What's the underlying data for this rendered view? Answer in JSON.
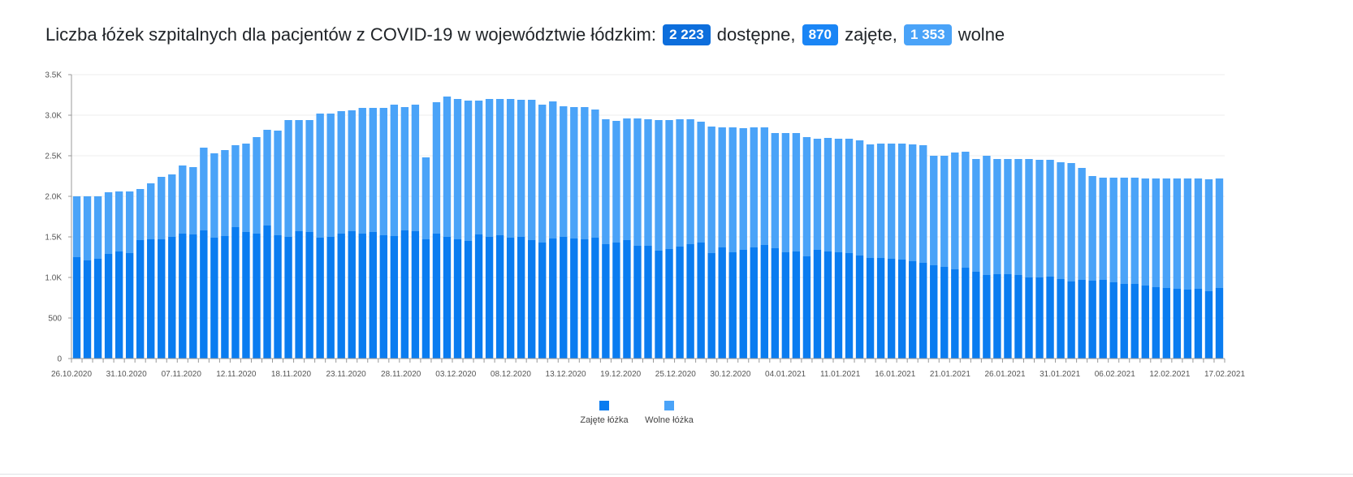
{
  "header": {
    "prefix": "Liczba łóżek szpitalnych dla pacjentów z COVID-19 w województwie łódzkim:",
    "total_value": "2 223",
    "total_label": "dostępne,",
    "occupied_value": "870",
    "occupied_label": "zajęte,",
    "free_value": "1 353",
    "free_label": "wolne"
  },
  "colors": {
    "occupied": "#0a7cf0",
    "free": "#4aa3f8",
    "badge_total": "#0d6edc",
    "badge_occupied": "#1a85f5",
    "badge_free": "#4aa3f8"
  },
  "chart_data": {
    "type": "bar",
    "stacked": true,
    "x_start": "26.10.2020",
    "x_tick_labels": [
      "26.10.2020",
      "31.10.2020",
      "07.11.2020",
      "12.11.2020",
      "18.11.2020",
      "23.11.2020",
      "28.11.2020",
      "03.12.2020",
      "08.12.2020",
      "13.12.2020",
      "19.12.2020",
      "25.12.2020",
      "30.12.2020",
      "04.01.2021",
      "11.01.2021",
      "16.01.2021",
      "21.01.2021",
      "26.01.2021",
      "31.01.2021",
      "06.02.2021",
      "12.02.2021",
      "17.02.2021"
    ],
    "y_ticks": [
      0,
      500,
      1000,
      1500,
      2000,
      2500,
      3000,
      3500
    ],
    "y_tick_labels": [
      "0",
      "500",
      "1.0K",
      "1.5K",
      "2.0K",
      "2.5K",
      "3.0K",
      "3.5K"
    ],
    "ylim": [
      0,
      3500
    ],
    "grid": true,
    "legend_position": "bottom-center",
    "series": [
      {
        "name": "Zajęte łóżka",
        "values": [
          1250,
          1210,
          1230,
          1290,
          1320,
          1300,
          1460,
          1470,
          1470,
          1500,
          1540,
          1530,
          1580,
          1490,
          1510,
          1620,
          1560,
          1540,
          1640,
          1520,
          1500,
          1570,
          1560,
          1490,
          1500,
          1540,
          1570,
          1540,
          1560,
          1520,
          1510,
          1580,
          1570,
          1470,
          1540,
          1500,
          1470,
          1450,
          1530,
          1500,
          1520,
          1490,
          1500,
          1460,
          1430,
          1480,
          1500,
          1480,
          1470,
          1490,
          1410,
          1430,
          1460,
          1390,
          1390,
          1330,
          1350,
          1380,
          1410,
          1430,
          1300,
          1370,
          1310,
          1340,
          1370,
          1400,
          1360,
          1310,
          1320,
          1260,
          1340,
          1320,
          1310,
          1300,
          1270,
          1240,
          1240,
          1230,
          1220,
          1200,
          1180,
          1150,
          1130,
          1100,
          1120,
          1070,
          1030,
          1040,
          1040,
          1030,
          1000,
          1000,
          1010,
          980,
          950,
          970,
          960,
          970,
          940,
          920,
          920,
          900,
          880,
          870,
          860,
          850,
          860,
          830,
          870
        ]
      },
      {
        "name": "Wolne łóżka",
        "values": [
          750,
          790,
          770,
          760,
          740,
          760,
          630,
          690,
          770,
          770,
          840,
          830,
          1020,
          1040,
          1060,
          1010,
          1090,
          1190,
          1180,
          1290,
          1440,
          1370,
          1380,
          1530,
          1520,
          1510,
          1490,
          1550,
          1530,
          1570,
          1620,
          1520,
          1560,
          1010,
          1620,
          1730,
          1730,
          1730,
          1650,
          1700,
          1680,
          1710,
          1690,
          1730,
          1700,
          1690,
          1610,
          1620,
          1630,
          1580,
          1540,
          1500,
          1500,
          1570,
          1560,
          1610,
          1590,
          1570,
          1540,
          1490,
          1560,
          1480,
          1540,
          1500,
          1480,
          1450,
          1420,
          1470,
          1460,
          1470,
          1370,
          1400,
          1400,
          1410,
          1420,
          1400,
          1410,
          1420,
          1430,
          1440,
          1450,
          1350,
          1370,
          1440,
          1430,
          1390,
          1470,
          1420,
          1420,
          1430,
          1460,
          1450,
          1440,
          1440,
          1460,
          1380,
          1290,
          1260,
          1290,
          1310,
          1310,
          1320,
          1340,
          1350,
          1360,
          1370,
          1360,
          1380,
          1350
        ]
      }
    ]
  },
  "legend": [
    {
      "label": "Zajęte łóżka"
    },
    {
      "label": "Wolne łóżka"
    }
  ]
}
